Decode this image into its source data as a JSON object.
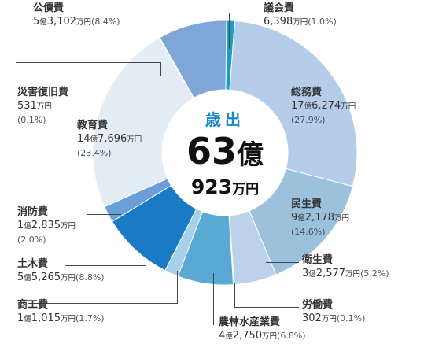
{
  "chart_data": {
    "type": "pie",
    "center_label": {
      "title": "歳出",
      "amount": "63",
      "amount_unit": "億",
      "sub_amount": "923",
      "sub_unit": "万円"
    },
    "slices": [
      {
        "name": "議会費",
        "oku": "",
        "man": "6,398",
        "unit": "万円",
        "percent": "(1.0%)",
        "value": 1.0,
        "color": "#1b9fbf"
      },
      {
        "name": "総務費",
        "oku": "17",
        "man": "6,274",
        "unit": "万円",
        "percent": "(27.9%)",
        "value": 27.9,
        "color": "#b6cdea"
      },
      {
        "name": "民生費",
        "oku": "9",
        "man": "2,178",
        "unit": "万円",
        "percent": "(14.6%)",
        "value": 14.6,
        "color": "#9cc1dc"
      },
      {
        "name": "衛生費",
        "oku": "3",
        "man": "2,577",
        "unit": "万円",
        "percent": "(5.2%)",
        "value": 5.2,
        "color": "#bcd2ea"
      },
      {
        "name": "労働費",
        "oku": "",
        "man": "302",
        "unit": "万円",
        "percent": "(0.1%)",
        "value": 0.1,
        "color": "#cfdfee"
      },
      {
        "name": "農林水産業費",
        "oku": "4",
        "man": "2,750",
        "unit": "万円",
        "percent": "(6.8%)",
        "value": 6.8,
        "color": "#5aa8d4"
      },
      {
        "name": "商工費",
        "oku": "1",
        "man": "1,015",
        "unit": "万円",
        "percent": "(1.7%)",
        "value": 1.7,
        "color": "#a7cfe7"
      },
      {
        "name": "土木費",
        "oku": "5",
        "man": "5,265",
        "unit": "万円",
        "percent": "(8.8%)",
        "value": 8.8,
        "color": "#1a7bc4"
      },
      {
        "name": "消防費",
        "oku": "1",
        "man": "2,835",
        "unit": "万円",
        "percent": "(2.0%)",
        "value": 2.0,
        "color": "#6a9fd8"
      },
      {
        "name": "教育費",
        "oku": "14",
        "man": "7,696",
        "unit": "万円",
        "percent": "(23.4%)",
        "value": 23.4,
        "color": "#e4ecf5"
      },
      {
        "name": "災害復旧費",
        "oku": "",
        "man": "531",
        "unit": "万円",
        "percent": "(0.1%)",
        "value": 0.1,
        "color": "#dde8f3"
      },
      {
        "name": "公債費",
        "oku": "5",
        "man": "3,102",
        "unit": "万円",
        "percent": "(8.4%)",
        "value": 8.4,
        "color": "#7ea7d8"
      }
    ],
    "oku_unit": "億"
  }
}
